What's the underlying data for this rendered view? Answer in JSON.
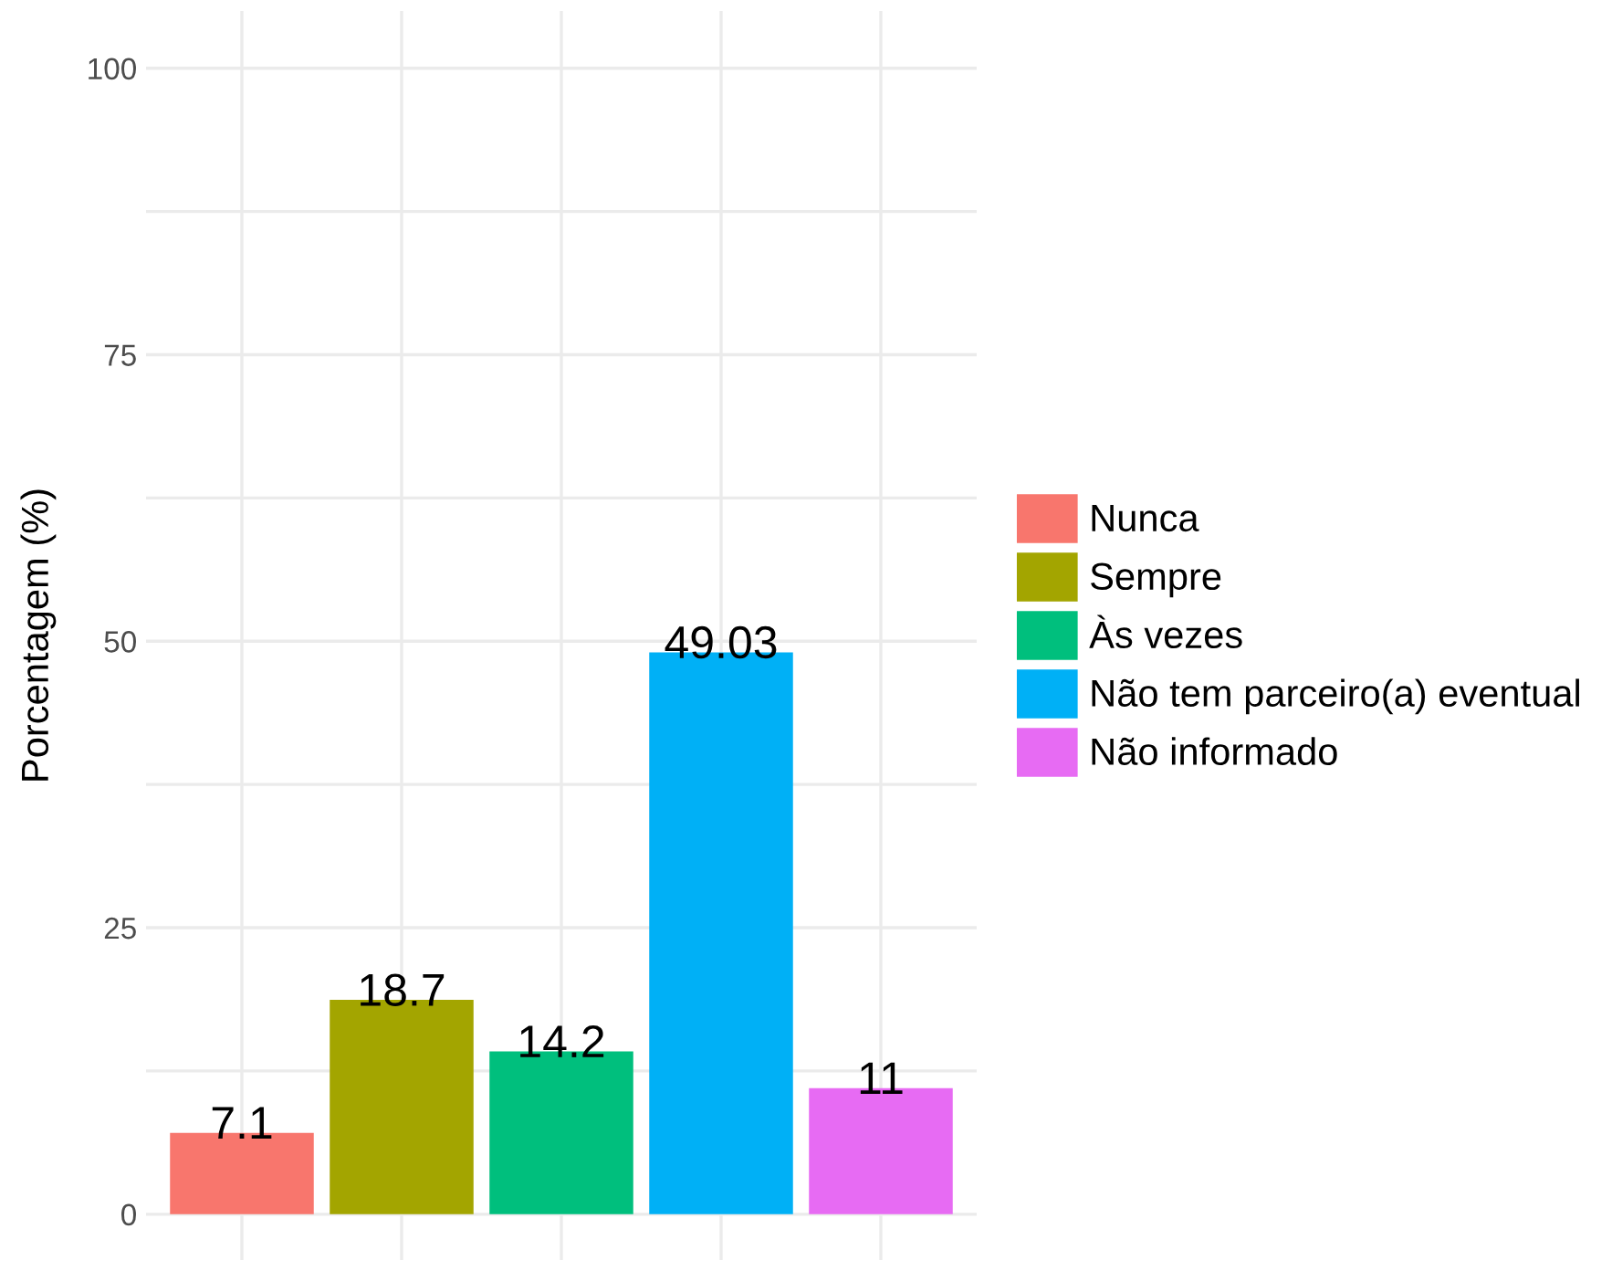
{
  "chart_data": {
    "type": "bar",
    "ylabel": "Porcentagem (%)",
    "categories": [
      null,
      null,
      null,
      null,
      null
    ],
    "series": [
      {
        "name": "Nunca",
        "color": "#f8766d",
        "values": [
          7.1,
          null,
          null,
          null,
          null
        ]
      },
      {
        "name": "Sempre",
        "color": "#a3a500",
        "values": [
          null,
          18.7,
          null,
          null,
          null
        ]
      },
      {
        "name": "Às vezes",
        "color": "#00bf7d",
        "values": [
          null,
          null,
          14.2,
          null,
          null
        ]
      },
      {
        "name": "Não tem parceiro(a) eventual",
        "color": "#00b0f6",
        "values": [
          null,
          null,
          null,
          49.03,
          null
        ]
      },
      {
        "name": "Não informado",
        "color": "#e76bf3",
        "values": [
          null,
          null,
          null,
          null,
          11
        ]
      }
    ],
    "ylim": [
      -4,
      105
    ],
    "yticks": [
      0,
      {
        "value": 12.5,
        "label": null
      },
      25,
      {
        "value": 37.5,
        "label": null
      },
      50,
      {
        "value": 62.5,
        "label": null
      },
      75,
      {
        "value": 87.5,
        "label": null
      },
      100
    ],
    "grid": true,
    "legend": "right",
    "data_labels": true
  }
}
